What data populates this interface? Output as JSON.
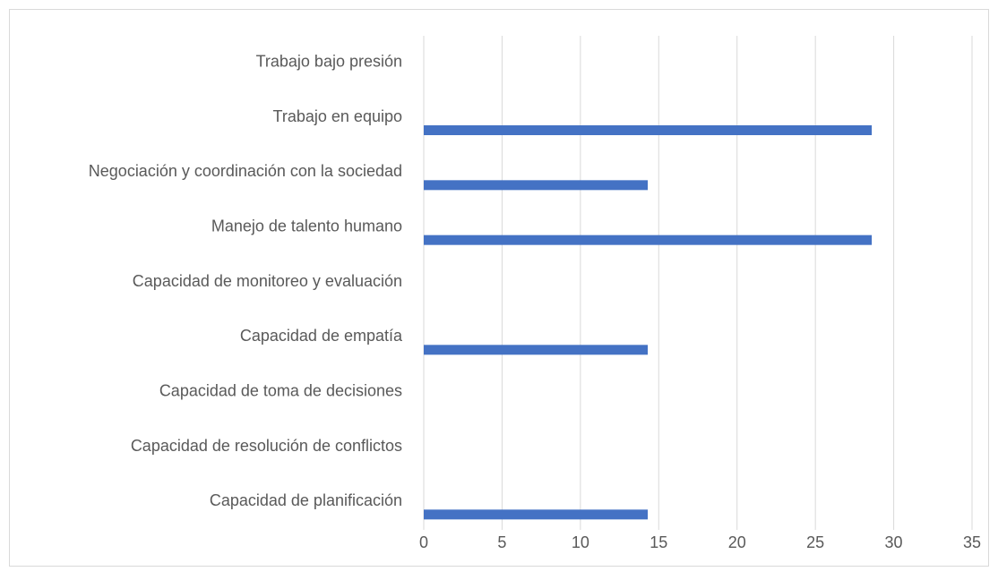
{
  "chart_data": {
    "type": "hbar",
    "categories": [
      "Trabajo bajo presión",
      "Trabajo en equipo",
      "Negociación y coordinación con la sociedad",
      "Manejo de talento humano",
      "Capacidad de monitoreo y evaluación",
      "Capacidad de empatía",
      "Capacidad de toma de decisiones",
      "Capacidad de resolución de conflictos",
      "Capacidad de planificación"
    ],
    "values": [
      0,
      28.6,
      14.3,
      28.6,
      0,
      14.3,
      0,
      0,
      14.3
    ],
    "color": "#4472c4",
    "xlim": [
      0,
      35
    ],
    "xticks": [
      0,
      5,
      10,
      15,
      20,
      25,
      30,
      35
    ],
    "grid": true
  }
}
